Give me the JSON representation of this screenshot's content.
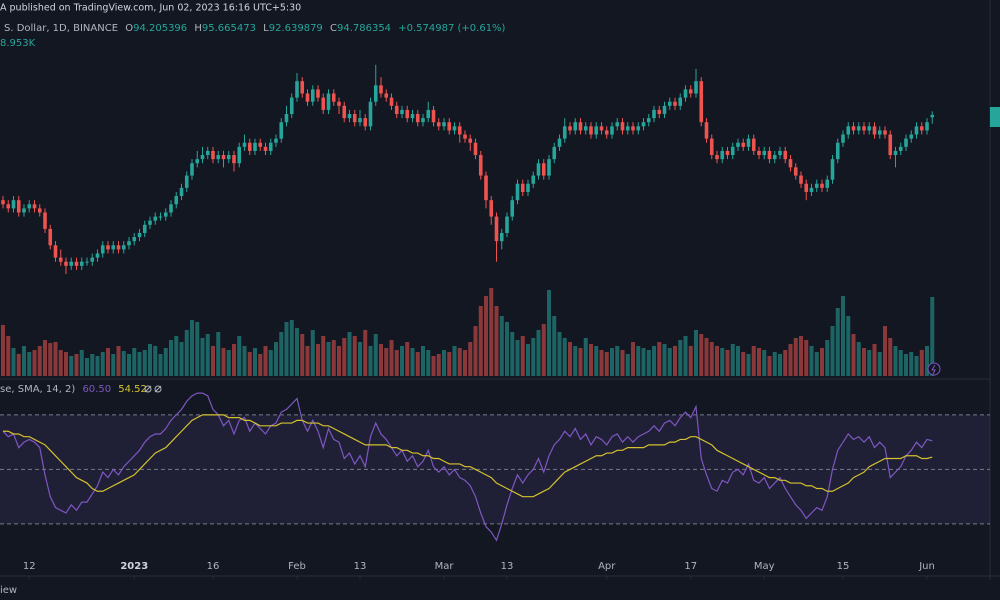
{
  "header": {
    "published": "A published on TradingView.com, Jun 02, 2023 16:16 UTC+5:30",
    "symbol": "S. Dollar, 1D, BINANCE",
    "ohlc_letters": [
      "O",
      "H",
      "L",
      "C"
    ],
    "change": "+0.574987 (+0.61%)",
    "volume": "8.953K",
    "rsi_title": "se, SMA, 14, 2)",
    "rsi_value": "60.50",
    "sma_value": "54.52",
    "footer": "iew"
  },
  "chart_data": {
    "type": "candlestick",
    "open": [
      74,
      73,
      72,
      74,
      71,
      72,
      73,
      72,
      71,
      67,
      63,
      60,
      59,
      58,
      59,
      58,
      59,
      59,
      60,
      61,
      63,
      62,
      63,
      62,
      63,
      64,
      65,
      66,
      68,
      69,
      70,
      70,
      71,
      73,
      75,
      77,
      80,
      83,
      84,
      85,
      86,
      84,
      85,
      84,
      85,
      83,
      87,
      88,
      86,
      88,
      87,
      86,
      88,
      89,
      93,
      95,
      99,
      103,
      100,
      98,
      101,
      99,
      96,
      100,
      98,
      97,
      94,
      95,
      93,
      94,
      92,
      98,
      102,
      100,
      99,
      97,
      95,
      96,
      94,
      95,
      93,
      94,
      96,
      93,
      92,
      93,
      91,
      92,
      90,
      89,
      88,
      85,
      80,
      74,
      70,
      64,
      66,
      70,
      74,
      78,
      76,
      78,
      80,
      83,
      80,
      84,
      87,
      89,
      92,
      91,
      93,
      91,
      92,
      90,
      92,
      91,
      90,
      92,
      93,
      91,
      92,
      91,
      92,
      93,
      94,
      96,
      95,
      97,
      98,
      97,
      99,
      101,
      100,
      103,
      93,
      89,
      85,
      84,
      86,
      85,
      87,
      88,
      87,
      89,
      86,
      85,
      86,
      84,
      85,
      86,
      84,
      82,
      80,
      78,
      76,
      77,
      78,
      77,
      79,
      84,
      88,
      90,
      92,
      91,
      92,
      91,
      92,
      90,
      91,
      90,
      85,
      86,
      87,
      89,
      90,
      92,
      91,
      94.205396
    ],
    "high": [
      75,
      74,
      75,
      75,
      73,
      74,
      74,
      73,
      72,
      68,
      64,
      62,
      60,
      60,
      60,
      60,
      60,
      61,
      62,
      64,
      64,
      64,
      64,
      64,
      65,
      66,
      67,
      69,
      70,
      71,
      71,
      72,
      74,
      76,
      78,
      81,
      84,
      86,
      87,
      87,
      87,
      86,
      86,
      86,
      86,
      88,
      90,
      89,
      89,
      89,
      88,
      89,
      90,
      94,
      97,
      100,
      105,
      104,
      101,
      102,
      102,
      100,
      101,
      101,
      99,
      98,
      96,
      96,
      96,
      95,
      99,
      107,
      104,
      101,
      100,
      98,
      97,
      97,
      96,
      96,
      95,
      98,
      97,
      94,
      94,
      94,
      93,
      93,
      91,
      90,
      89,
      86,
      81,
      75,
      71,
      67,
      71,
      75,
      79,
      79,
      79,
      81,
      84,
      84,
      85,
      88,
      90,
      94,
      93,
      94,
      94,
      93,
      93,
      93,
      93,
      92,
      93,
      94,
      94,
      93,
      93,
      93,
      94,
      95,
      97,
      97,
      98,
      99,
      99,
      100,
      102,
      102,
      106,
      104,
      94,
      90,
      86,
      87,
      87,
      88,
      89,
      89,
      90,
      90,
      87,
      87,
      87,
      86,
      87,
      87,
      85,
      83,
      81,
      79,
      78,
      79,
      79,
      80,
      85,
      89,
      91,
      93,
      93,
      93,
      93,
      93,
      93,
      92,
      92,
      91,
      87,
      88,
      90,
      91,
      93,
      93,
      94,
      95.665473
    ],
    "low": [
      72,
      71,
      71,
      70,
      70,
      71,
      71,
      70,
      66,
      62,
      59,
      58,
      56,
      57,
      57,
      57,
      58,
      58,
      59,
      60,
      61,
      61,
      61,
      61,
      62,
      63,
      64,
      65,
      67,
      68,
      69,
      69,
      70,
      72,
      74,
      76,
      79,
      82,
      83,
      84,
      83,
      83,
      82,
      83,
      81,
      82,
      86,
      85,
      85,
      86,
      85,
      85,
      87,
      88,
      92,
      94,
      98,
      99,
      97,
      97,
      98,
      95,
      95,
      97,
      95,
      93,
      93,
      92,
      92,
      91,
      91,
      97,
      99,
      98,
      96,
      94,
      94,
      93,
      93,
      92,
      92,
      93,
      92,
      91,
      91,
      90,
      90,
      88,
      88,
      86,
      84,
      79,
      72,
      68,
      59,
      62,
      65,
      69,
      73,
      75,
      75,
      77,
      79,
      79,
      79,
      83,
      86,
      88,
      90,
      90,
      90,
      90,
      89,
      89,
      90,
      89,
      89,
      91,
      90,
      90,
      90,
      90,
      91,
      92,
      93,
      94,
      94,
      96,
      96,
      96,
      98,
      99,
      99,
      92,
      88,
      84,
      83,
      83,
      84,
      84,
      86,
      86,
      86,
      85,
      84,
      84,
      83,
      83,
      84,
      83,
      81,
      79,
      77,
      74,
      75,
      76,
      76,
      76,
      78,
      83,
      87,
      89,
      90,
      90,
      90,
      90,
      89,
      89,
      89,
      84,
      82,
      85,
      86,
      88,
      89,
      90,
      90,
      92.639879
    ],
    "close": [
      73,
      72,
      74,
      71,
      72,
      73,
      72,
      71,
      67,
      63,
      60,
      59,
      58,
      59,
      58,
      59,
      59,
      60,
      61,
      63,
      62,
      63,
      62,
      63,
      64,
      65,
      66,
      68,
      69,
      70,
      70,
      71,
      73,
      75,
      77,
      80,
      83,
      84,
      85,
      86,
      84,
      85,
      84,
      85,
      83,
      87,
      88,
      86,
      88,
      87,
      86,
      88,
      89,
      93,
      95,
      99,
      103,
      100,
      98,
      101,
      99,
      96,
      100,
      98,
      97,
      94,
      95,
      93,
      94,
      92,
      98,
      102,
      100,
      99,
      97,
      95,
      96,
      94,
      95,
      93,
      94,
      96,
      93,
      92,
      93,
      91,
      92,
      90,
      89,
      88,
      85,
      80,
      74,
      70,
      64,
      66,
      70,
      74,
      78,
      76,
      78,
      80,
      83,
      80,
      84,
      87,
      89,
      92,
      91,
      93,
      91,
      92,
      90,
      92,
      91,
      90,
      92,
      93,
      91,
      92,
      91,
      92,
      93,
      94,
      96,
      95,
      97,
      98,
      97,
      99,
      101,
      100,
      103,
      93,
      89,
      85,
      84,
      86,
      85,
      87,
      88,
      87,
      89,
      86,
      85,
      86,
      84,
      85,
      86,
      84,
      82,
      80,
      78,
      76,
      77,
      78,
      77,
      79,
      84,
      88,
      90,
      92,
      91,
      92,
      91,
      92,
      90,
      91,
      90,
      85,
      86,
      87,
      89,
      90,
      92,
      91,
      93,
      94.786354
    ],
    "volume": [
      51,
      40,
      28,
      22,
      30,
      24,
      26,
      30,
      36,
      33,
      34,
      26,
      24,
      20,
      22,
      26,
      18,
      22,
      20,
      24,
      28,
      22,
      30,
      25,
      22,
      28,
      24,
      26,
      32,
      30,
      22,
      28,
      36,
      40,
      34,
      46,
      56,
      54,
      38,
      42,
      30,
      44,
      28,
      26,
      32,
      40,
      30,
      24,
      28,
      22,
      30,
      26,
      34,
      44,
      54,
      56,
      48,
      42,
      30,
      46,
      32,
      40,
      34,
      36,
      30,
      38,
      44,
      40,
      34,
      46,
      30,
      42,
      32,
      28,
      36,
      26,
      30,
      34,
      28,
      24,
      30,
      26,
      20,
      22,
      26,
      24,
      30,
      28,
      26,
      34,
      50,
      70,
      80,
      88,
      70,
      60,
      54,
      44,
      36,
      40,
      32,
      38,
      46,
      52,
      86,
      60,
      44,
      38,
      34,
      30,
      28,
      38,
      32,
      30,
      26,
      24,
      28,
      30,
      26,
      22,
      34,
      30,
      28,
      26,
      30,
      34,
      32,
      28,
      30,
      36,
      40,
      30,
      46,
      42,
      38,
      34,
      30,
      28,
      26,
      32,
      30,
      24,
      22,
      30,
      28,
      26,
      20,
      24,
      22,
      26,
      32,
      38,
      40,
      36,
      30,
      24,
      28,
      36,
      50,
      68,
      80,
      60,
      42,
      34,
      28,
      26,
      32,
      24,
      50,
      38,
      30,
      26,
      22,
      24,
      20,
      26,
      30,
      79
    ],
    "rsi": [
      64,
      62,
      63,
      58,
      60,
      61,
      60,
      58,
      48,
      40,
      36,
      35,
      34,
      37,
      35,
      38,
      38,
      41,
      44,
      49,
      47,
      50,
      48,
      51,
      53,
      55,
      57,
      60,
      62,
      63,
      63,
      65,
      68,
      70,
      72,
      75,
      77,
      78,
      78,
      77,
      72,
      70,
      66,
      68,
      63,
      68,
      69,
      64,
      67,
      65,
      63,
      66,
      67,
      71,
      72,
      74,
      76,
      68,
      64,
      68,
      64,
      58,
      65,
      61,
      60,
      54,
      56,
      52,
      55,
      51,
      62,
      67,
      63,
      61,
      58,
      55,
      57,
      53,
      55,
      51,
      53,
      57,
      51,
      49,
      51,
      48,
      50,
      47,
      46,
      44,
      40,
      34,
      29,
      27,
      24,
      30,
      37,
      43,
      48,
      45,
      48,
      50,
      54,
      49,
      55,
      59,
      61,
      64,
      62,
      65,
      61,
      63,
      59,
      62,
      61,
      59,
      62,
      63,
      60,
      62,
      60,
      62,
      63,
      64,
      66,
      64,
      67,
      68,
      66,
      69,
      71,
      69,
      73,
      54,
      48,
      43,
      42,
      46,
      45,
      49,
      50,
      48,
      52,
      46,
      45,
      47,
      43,
      45,
      47,
      43,
      40,
      37,
      35,
      32,
      34,
      36,
      35,
      40,
      50,
      57,
      60,
      63,
      61,
      62,
      60,
      62,
      58,
      60,
      58,
      47,
      49,
      51,
      55,
      57,
      60,
      58,
      61,
      60.5
    ],
    "rsi_sma": [
      64,
      64,
      63,
      63,
      62,
      62,
      61,
      60,
      59,
      57,
      55,
      53,
      51,
      49,
      47,
      46,
      45,
      43,
      42,
      42,
      43,
      44,
      45,
      46,
      47,
      48,
      50,
      52,
      54,
      56,
      57,
      58,
      60,
      62,
      64,
      66,
      68,
      69,
      70,
      70,
      70,
      70,
      70,
      69,
      69,
      69,
      68,
      68,
      67,
      66,
      66,
      66,
      66,
      67,
      67,
      67,
      68,
      68,
      67,
      67,
      67,
      66,
      66,
      65,
      64,
      63,
      62,
      61,
      60,
      59,
      59,
      59,
      59,
      59,
      58,
      58,
      57,
      57,
      56,
      56,
      55,
      55,
      54,
      54,
      53,
      52,
      52,
      52,
      51,
      51,
      50,
      49,
      48,
      47,
      45,
      44,
      43,
      42,
      41,
      40,
      40,
      40,
      41,
      42,
      43,
      45,
      47,
      49,
      50,
      51,
      52,
      53,
      54,
      55,
      55,
      56,
      56,
      57,
      57,
      58,
      58,
      58,
      58,
      59,
      59,
      59,
      59,
      60,
      60,
      61,
      61,
      62,
      62,
      61,
      60,
      59,
      57,
      56,
      55,
      54,
      53,
      52,
      51,
      50,
      49,
      48,
      47,
      47,
      46,
      46,
      45,
      45,
      45,
      44,
      44,
      43,
      43,
      42,
      42,
      43,
      44,
      45,
      47,
      48,
      49,
      51,
      52,
      53,
      54,
      54,
      54,
      54,
      55,
      55,
      55,
      54,
      54,
      54.52
    ],
    "ylim": [
      52.1,
      116.7
    ],
    "volume_ylim": [
      0,
      100
    ],
    "rsi_ylim": [
      18.6,
      81.7
    ],
    "rsi_levels": [
      30,
      50,
      70
    ],
    "xticks": [
      {
        "value": 5,
        "label": "12"
      },
      {
        "value": 25,
        "label": "2023"
      },
      {
        "value": 40,
        "label": "16"
      },
      {
        "value": 56,
        "label": "Feb"
      },
      {
        "value": 68,
        "label": "13"
      },
      {
        "value": 84,
        "label": "Mar"
      },
      {
        "value": 96,
        "label": "13"
      },
      {
        "value": 115,
        "label": "Apr"
      },
      {
        "value": 131,
        "label": "17"
      },
      {
        "value": 145,
        "label": "May"
      },
      {
        "value": 160,
        "label": "15"
      },
      {
        "value": 176,
        "label": "Jun"
      }
    ],
    "up_color": "#26a69a",
    "down_color": "#ef5350",
    "rsi_color": "#7e57c2",
    "sma_color": "#d4c12e"
  }
}
